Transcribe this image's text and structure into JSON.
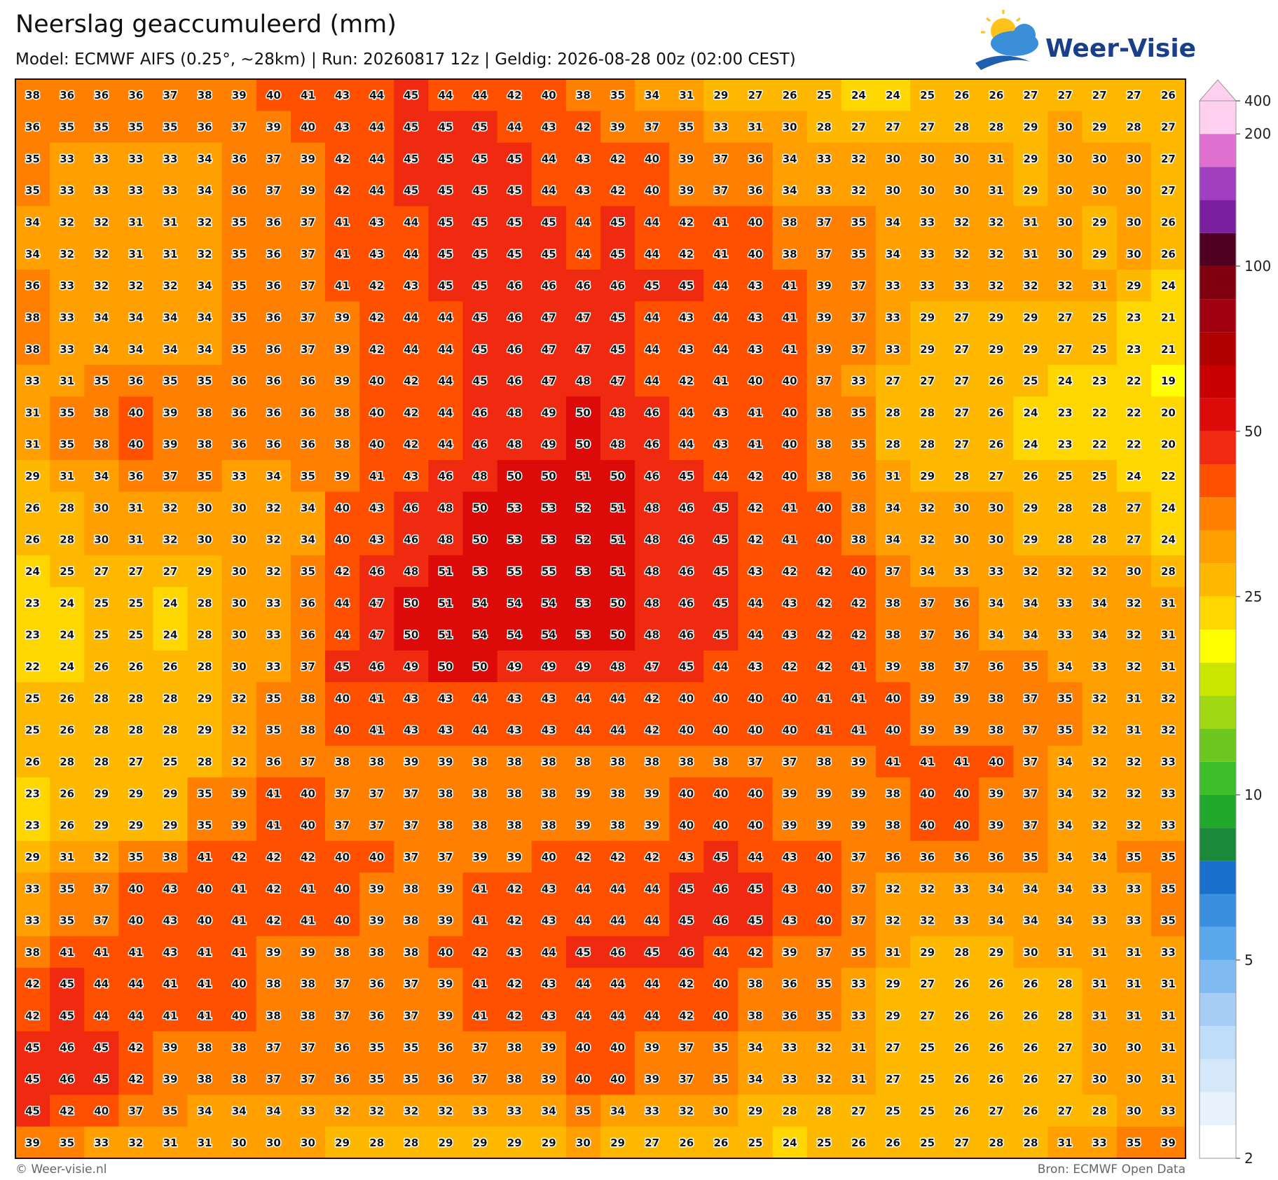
{
  "header": {
    "title": "Neerslag geaccumuleerd (mm)",
    "subtitle": "Model: ECMWF AIFS (0.25°, ~28km)  |  Run: 20260817 12z  |  Geldig: 2026-08-28 00z (02:00 CEST)"
  },
  "logo": {
    "text": "Weer-Visie"
  },
  "map": {
    "values": [
      [
        38,
        36,
        36,
        36,
        37,
        38,
        39,
        40,
        41,
        43,
        44,
        45,
        44,
        44,
        42,
        40,
        38,
        35,
        34,
        31,
        29,
        27,
        26,
        25,
        24,
        24,
        25,
        26,
        26,
        27,
        27,
        27,
        27,
        26
      ],
      [
        36,
        35,
        35,
        35,
        35,
        36,
        37,
        39,
        40,
        43,
        44,
        45,
        45,
        45,
        44,
        43,
        42,
        39,
        37,
        35,
        33,
        31,
        30,
        28,
        27,
        27,
        27,
        28,
        28,
        29,
        30,
        29,
        28,
        27
      ],
      [
        35,
        33,
        33,
        33,
        33,
        34,
        36,
        37,
        39,
        42,
        44,
        45,
        45,
        45,
        45,
        44,
        43,
        42,
        40,
        39,
        37,
        36,
        34,
        33,
        32,
        30,
        30,
        30,
        31,
        29,
        30,
        30,
        30,
        27
      ],
      [
        35,
        33,
        33,
        33,
        33,
        34,
        36,
        37,
        39,
        42,
        44,
        45,
        45,
        45,
        45,
        44,
        43,
        42,
        40,
        39,
        37,
        36,
        34,
        33,
        32,
        30,
        30,
        30,
        31,
        29,
        30,
        30,
        30,
        27
      ],
      [
        34,
        32,
        32,
        31,
        31,
        32,
        35,
        36,
        37,
        41,
        43,
        44,
        45,
        45,
        45,
        45,
        44,
        45,
        44,
        42,
        41,
        40,
        38,
        37,
        35,
        34,
        33,
        32,
        32,
        31,
        30,
        29,
        30,
        26
      ],
      [
        34,
        32,
        32,
        31,
        31,
        32,
        35,
        36,
        37,
        41,
        43,
        44,
        45,
        45,
        45,
        45,
        44,
        45,
        44,
        42,
        41,
        40,
        38,
        37,
        35,
        34,
        33,
        32,
        32,
        31,
        30,
        29,
        30,
        26
      ],
      [
        36,
        33,
        32,
        32,
        32,
        34,
        35,
        36,
        37,
        41,
        42,
        43,
        45,
        45,
        46,
        46,
        46,
        46,
        45,
        45,
        44,
        43,
        41,
        39,
        37,
        33,
        33,
        33,
        32,
        32,
        32,
        31,
        29,
        24
      ],
      [
        38,
        33,
        34,
        34,
        34,
        34,
        35,
        36,
        37,
        39,
        42,
        44,
        44,
        45,
        46,
        47,
        47,
        45,
        44,
        43,
        44,
        43,
        41,
        39,
        37,
        33,
        29,
        27,
        29,
        29,
        27,
        25,
        23,
        21
      ],
      [
        38,
        33,
        34,
        34,
        34,
        34,
        35,
        36,
        37,
        39,
        42,
        44,
        44,
        45,
        46,
        47,
        47,
        45,
        44,
        43,
        44,
        43,
        41,
        39,
        37,
        33,
        29,
        27,
        29,
        29,
        27,
        25,
        23,
        21
      ],
      [
        33,
        31,
        35,
        36,
        35,
        35,
        36,
        36,
        36,
        39,
        40,
        42,
        44,
        45,
        46,
        47,
        48,
        47,
        44,
        42,
        41,
        40,
        40,
        37,
        33,
        27,
        27,
        27,
        26,
        25,
        24,
        23,
        22,
        19
      ],
      [
        31,
        35,
        38,
        40,
        39,
        38,
        36,
        36,
        36,
        38,
        40,
        42,
        44,
        46,
        48,
        49,
        50,
        48,
        46,
        44,
        43,
        41,
        40,
        38,
        35,
        28,
        28,
        27,
        26,
        24,
        23,
        22,
        22,
        20
      ],
      [
        31,
        35,
        38,
        40,
        39,
        38,
        36,
        36,
        36,
        38,
        40,
        42,
        44,
        46,
        48,
        49,
        50,
        48,
        46,
        44,
        43,
        41,
        40,
        38,
        35,
        28,
        28,
        27,
        26,
        24,
        23,
        22,
        22,
        20
      ],
      [
        29,
        31,
        34,
        36,
        37,
        35,
        33,
        34,
        35,
        39,
        41,
        43,
        46,
        48,
        50,
        50,
        51,
        50,
        46,
        45,
        44,
        42,
        40,
        38,
        36,
        31,
        29,
        28,
        27,
        26,
        25,
        25,
        24,
        22
      ],
      [
        26,
        28,
        30,
        31,
        32,
        30,
        30,
        32,
        34,
        40,
        43,
        46,
        48,
        50,
        53,
        53,
        52,
        51,
        48,
        46,
        45,
        42,
        41,
        40,
        38,
        34,
        32,
        30,
        30,
        29,
        28,
        28,
        27,
        24
      ],
      [
        26,
        28,
        30,
        31,
        32,
        30,
        30,
        32,
        34,
        40,
        43,
        46,
        48,
        50,
        53,
        53,
        52,
        51,
        48,
        46,
        45,
        42,
        41,
        40,
        38,
        34,
        32,
        30,
        30,
        29,
        28,
        28,
        27,
        24
      ],
      [
        24,
        25,
        27,
        27,
        27,
        29,
        30,
        32,
        35,
        42,
        46,
        48,
        51,
        53,
        55,
        55,
        53,
        51,
        48,
        46,
        45,
        43,
        42,
        42,
        40,
        37,
        34,
        33,
        33,
        32,
        32,
        32,
        30,
        28
      ],
      [
        23,
        24,
        25,
        25,
        24,
        28,
        30,
        33,
        36,
        44,
        47,
        50,
        51,
        54,
        54,
        54,
        53,
        50,
        48,
        46,
        45,
        44,
        43,
        42,
        42,
        38,
        37,
        36,
        34,
        34,
        33,
        34,
        32,
        31
      ],
      [
        23,
        24,
        25,
        25,
        24,
        28,
        30,
        33,
        36,
        44,
        47,
        50,
        51,
        54,
        54,
        54,
        53,
        50,
        48,
        46,
        45,
        44,
        43,
        42,
        42,
        38,
        37,
        36,
        34,
        34,
        33,
        34,
        32,
        31
      ],
      [
        22,
        24,
        26,
        26,
        26,
        28,
        30,
        33,
        37,
        45,
        46,
        49,
        50,
        50,
        49,
        49,
        49,
        48,
        47,
        45,
        44,
        43,
        42,
        42,
        41,
        39,
        38,
        37,
        36,
        35,
        34,
        33,
        32,
        31
      ],
      [
        25,
        26,
        28,
        28,
        28,
        29,
        32,
        35,
        38,
        40,
        41,
        43,
        43,
        44,
        43,
        43,
        44,
        44,
        42,
        40,
        40,
        40,
        40,
        41,
        41,
        40,
        39,
        39,
        38,
        37,
        35,
        32,
        31,
        32
      ],
      [
        25,
        26,
        28,
        28,
        28,
        29,
        32,
        35,
        38,
        40,
        41,
        43,
        43,
        44,
        43,
        43,
        44,
        44,
        42,
        40,
        40,
        40,
        40,
        41,
        41,
        40,
        39,
        39,
        38,
        37,
        35,
        32,
        31,
        32
      ],
      [
        26,
        28,
        28,
        27,
        25,
        28,
        32,
        36,
        37,
        38,
        38,
        39,
        39,
        38,
        38,
        38,
        38,
        38,
        38,
        38,
        38,
        37,
        37,
        38,
        39,
        41,
        41,
        41,
        40,
        37,
        34,
        32,
        32,
        33
      ],
      [
        23,
        26,
        29,
        29,
        29,
        35,
        39,
        41,
        40,
        37,
        37,
        37,
        38,
        38,
        38,
        38,
        39,
        38,
        39,
        40,
        40,
        40,
        39,
        39,
        39,
        38,
        40,
        40,
        39,
        37,
        34,
        32,
        32,
        33
      ],
      [
        23,
        26,
        29,
        29,
        29,
        35,
        39,
        41,
        40,
        37,
        37,
        37,
        38,
        38,
        38,
        38,
        39,
        38,
        39,
        40,
        40,
        40,
        39,
        39,
        39,
        38,
        40,
        40,
        39,
        37,
        34,
        32,
        32,
        33
      ],
      [
        29,
        31,
        32,
        35,
        38,
        41,
        42,
        42,
        42,
        40,
        40,
        37,
        37,
        39,
        39,
        40,
        42,
        42,
        42,
        43,
        45,
        44,
        43,
        40,
        37,
        36,
        36,
        36,
        36,
        35,
        34,
        34,
        35,
        35
      ],
      [
        33,
        35,
        37,
        40,
        43,
        40,
        41,
        42,
        41,
        40,
        39,
        38,
        39,
        41,
        42,
        43,
        44,
        44,
        44,
        45,
        46,
        45,
        43,
        40,
        37,
        32,
        32,
        33,
        34,
        34,
        34,
        33,
        33,
        35
      ],
      [
        33,
        35,
        37,
        40,
        43,
        40,
        41,
        42,
        41,
        40,
        39,
        38,
        39,
        41,
        42,
        43,
        44,
        44,
        44,
        45,
        46,
        45,
        43,
        40,
        37,
        32,
        32,
        33,
        34,
        34,
        34,
        33,
        33,
        35
      ],
      [
        38,
        41,
        41,
        41,
        43,
        41,
        41,
        39,
        39,
        38,
        38,
        38,
        40,
        42,
        43,
        44,
        45,
        46,
        45,
        46,
        44,
        42,
        39,
        37,
        35,
        31,
        29,
        28,
        29,
        30,
        31,
        31,
        31,
        33
      ],
      [
        42,
        45,
        44,
        44,
        41,
        41,
        40,
        38,
        38,
        37,
        36,
        37,
        39,
        41,
        42,
        43,
        44,
        44,
        44,
        42,
        40,
        38,
        36,
        35,
        33,
        29,
        27,
        26,
        26,
        26,
        28,
        31,
        31,
        31
      ],
      [
        42,
        45,
        44,
        44,
        41,
        41,
        40,
        38,
        38,
        37,
        36,
        37,
        39,
        41,
        42,
        43,
        44,
        44,
        44,
        42,
        40,
        38,
        36,
        35,
        33,
        29,
        27,
        26,
        26,
        26,
        28,
        31,
        31,
        31
      ],
      [
        45,
        46,
        45,
        42,
        39,
        38,
        38,
        37,
        37,
        36,
        35,
        35,
        36,
        37,
        38,
        39,
        40,
        40,
        39,
        37,
        35,
        34,
        33,
        32,
        31,
        27,
        25,
        26,
        26,
        26,
        27,
        30,
        30,
        31
      ],
      [
        45,
        46,
        45,
        42,
        39,
        38,
        38,
        37,
        37,
        36,
        35,
        35,
        36,
        37,
        38,
        39,
        40,
        40,
        39,
        37,
        35,
        34,
        33,
        32,
        31,
        27,
        25,
        26,
        26,
        26,
        27,
        30,
        30,
        31
      ],
      [
        45,
        42,
        40,
        37,
        35,
        34,
        34,
        34,
        33,
        32,
        32,
        32,
        32,
        33,
        33,
        34,
        35,
        34,
        33,
        32,
        30,
        29,
        28,
        28,
        27,
        25,
        25,
        26,
        27,
        26,
        27,
        28,
        30,
        33
      ],
      [
        39,
        35,
        33,
        32,
        31,
        31,
        30,
        30,
        30,
        29,
        28,
        28,
        29,
        29,
        29,
        29,
        30,
        29,
        27,
        26,
        26,
        25,
        24,
        25,
        26,
        26,
        25,
        27,
        28,
        28,
        31,
        33,
        35,
        39
      ]
    ]
  },
  "colorbar": {
    "levels": [
      2,
      2.5,
      3,
      3.5,
      4,
      4.5,
      5,
      6,
      7,
      8,
      9,
      10,
      12,
      14,
      16,
      18,
      20,
      25,
      30,
      35,
      40,
      45,
      50,
      60,
      70,
      80,
      90,
      100,
      125,
      150,
      175,
      200,
      400
    ],
    "colors": [
      "#ffffff",
      "#e8f2fc",
      "#d4e8fa",
      "#bfdcf8",
      "#a5cdf5",
      "#7fbaf0",
      "#5aa8ec",
      "#3a8fe0",
      "#1a6fcc",
      "#1a8a3a",
      "#22a82a",
      "#3cbf2a",
      "#6cc81e",
      "#a0d814",
      "#cce600",
      "#ffff00",
      "#ffd700",
      "#ffb800",
      "#ffa000",
      "#ff8000",
      "#ff5000",
      "#f02a10",
      "#dd0a0a",
      "#c80000",
      "#b00000",
      "#a00010",
      "#800010",
      "#500020",
      "#7a1fa0",
      "#a040c0",
      "#e070d0",
      "#ffd0f0"
    ],
    "ticks": [
      2,
      5,
      10,
      25,
      50,
      100,
      200,
      400
    ]
  },
  "footer": {
    "left": "© Weer-visie.nl",
    "right": "Bron: ECMWF Open Data"
  }
}
